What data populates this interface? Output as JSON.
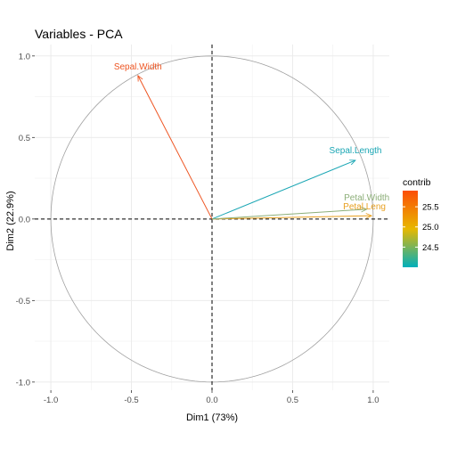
{
  "chart_data": {
    "type": "scatter",
    "title": "Variables - PCA",
    "xlabel": "Dim1 (73%)",
    "ylabel": "Dim2 (22.9%)",
    "xlim": [
      -1.1,
      1.1
    ],
    "ylim": [
      -1.05,
      1.07
    ],
    "x_ticks": [
      -1.0,
      -0.5,
      0.0,
      0.5,
      1.0
    ],
    "x_tick_labels": [
      "-1.0",
      "-0.5",
      "0.0",
      "0.5",
      "1.0"
    ],
    "y_ticks": [
      -1.0,
      -0.5,
      0.0,
      0.5,
      1.0
    ],
    "y_tick_labels": [
      "-1.0",
      "-0.5",
      "0.0",
      "0.5",
      "1.0"
    ],
    "grid": true,
    "correlation_circle": true,
    "zero_lines": "dashed",
    "variables": [
      {
        "name": "Sepal.Length",
        "x": 0.89,
        "y": 0.36,
        "contrib": 24.0,
        "color": "#1aa6b4"
      },
      {
        "name": "Sepal.Width",
        "x": -0.46,
        "y": 0.88,
        "contrib": 25.9,
        "color": "#ee5522"
      },
      {
        "name": "Petal.Length",
        "label": "Petal.Leng",
        "x": 0.99,
        "y": 0.02,
        "contrib": 25.6,
        "color": "#e8a020"
      },
      {
        "name": "Petal.Width",
        "x": 0.96,
        "y": 0.06,
        "contrib": 24.4,
        "color": "#8cae78"
      }
    ],
    "legend": {
      "title": "contrib",
      "placement": "right",
      "range": [
        24.0,
        25.9
      ],
      "ticks": [
        24.5,
        25.0,
        25.5
      ],
      "tick_labels": [
        "24.5",
        "25.0",
        "25.5"
      ],
      "gradient": [
        "#00afbb",
        "#e7b800",
        "#fc4e07"
      ]
    }
  }
}
